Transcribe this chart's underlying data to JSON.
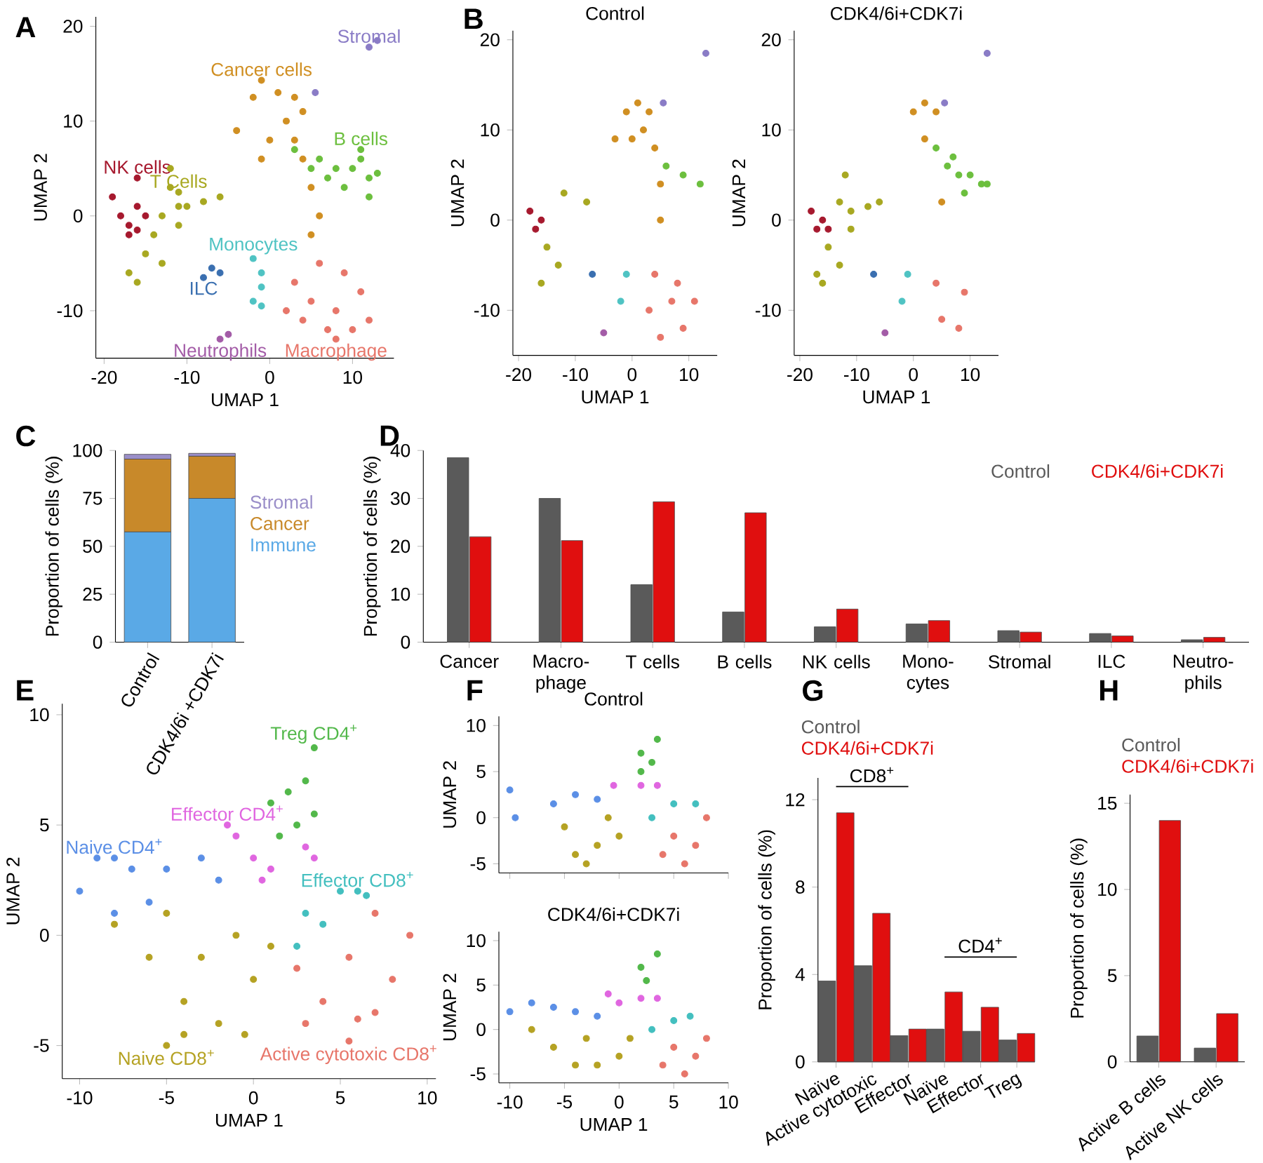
{
  "chart_data": [
    {
      "type": "scatter",
      "xlabel": "UMAP 1",
      "ylabel": "UMAP 2",
      "marker": "circle",
      "annotations": [
        "A"
      ],
      "xlim": [
        -21,
        15
      ],
      "ylim": [
        -15,
        21
      ],
      "xticks": [
        -20,
        -10,
        0,
        10
      ],
      "yticks": [
        -10,
        0,
        10,
        20
      ],
      "series": [
        {
          "name": "Stromal",
          "color": "#8a7cc6",
          "x": [
            12,
            5.5,
            13
          ],
          "values": [
            17.8,
            13,
            18.5
          ]
        },
        {
          "name": "Cancer cells",
          "color": "#d08f22",
          "x": [
            -1,
            -4,
            -2,
            1,
            3,
            4,
            2,
            0,
            -1,
            3,
            4,
            5,
            6,
            5
          ],
          "values": [
            14.3,
            9,
            12.5,
            13,
            12.5,
            11,
            10,
            8,
            6,
            8,
            6,
            3,
            0,
            -2
          ]
        },
        {
          "name": "B cells",
          "color": "#6cbf3e",
          "x": [
            11,
            3,
            6,
            8,
            10,
            12,
            13,
            9,
            11,
            7,
            5,
            12
          ],
          "values": [
            7,
            7,
            6,
            5,
            5,
            4,
            4.5,
            3,
            6,
            4,
            5,
            2
          ]
        },
        {
          "name": "NK cells",
          "color": "#a6192e",
          "x": [
            -16,
            -19,
            -18,
            -17,
            -16,
            -15,
            -17,
            -16
          ],
          "values": [
            4,
            2,
            0,
            -1,
            1,
            0,
            -2,
            -1.5
          ]
        },
        {
          "name": "T Cells",
          "color": "#a8a821",
          "x": [
            -11,
            -12,
            -12,
            -11,
            -13,
            -10,
            -8,
            -6,
            -14,
            -15,
            -17,
            -16,
            -13,
            -11
          ],
          "values": [
            2.5,
            5,
            3,
            1,
            0,
            1,
            1.5,
            2,
            -2,
            -4,
            -6,
            -7,
            -5,
            -1
          ]
        },
        {
          "name": "Monocytes",
          "color": "#4fc3c3",
          "x": [
            -2,
            -1,
            -1,
            -2,
            -1
          ],
          "values": [
            -4.5,
            -6,
            -7.5,
            -9,
            -9.5
          ]
        },
        {
          "name": "ILC",
          "color": "#3a6fb0",
          "x": [
            -8,
            -7,
            -6
          ],
          "values": [
            -6.5,
            -5.5,
            -6
          ]
        },
        {
          "name": "Neutrophils",
          "color": "#a35ca7",
          "x": [
            -6,
            -5
          ],
          "values": [
            -13,
            -12.5
          ]
        },
        {
          "name": "Macrophage",
          "color": "#e7766a",
          "x": [
            8,
            3,
            6,
            9,
            11,
            12,
            2,
            5,
            8,
            7,
            4,
            10
          ],
          "values": [
            -13,
            -7,
            -5,
            -6,
            -8,
            -11,
            -10,
            -9,
            -10,
            -12,
            -11,
            -12
          ]
        }
      ]
    },
    {
      "type": "scatter",
      "title": "Control",
      "xlabel": "UMAP 1",
      "ylabel": "UMAP 2",
      "marker": "circle",
      "annotations": [
        "B"
      ],
      "xlim": [
        -21,
        15
      ],
      "ylim": [
        -15,
        21
      ],
      "xticks": [
        -20,
        -10,
        0,
        10
      ],
      "yticks": [
        -10,
        0,
        10,
        20
      ],
      "series": [
        {
          "color": "#8a7cc6",
          "x": [
            5.5,
            13
          ],
          "values": [
            13,
            18.5
          ]
        },
        {
          "color": "#d08f22",
          "x": [
            -1,
            1,
            3,
            2,
            0,
            4,
            5,
            5,
            -3
          ],
          "values": [
            12,
            13,
            12,
            10,
            9,
            8,
            4,
            0,
            9
          ]
        },
        {
          "color": "#6cbf3e",
          "x": [
            6,
            9,
            12
          ],
          "values": [
            6,
            5,
            4
          ]
        },
        {
          "color": "#a6192e",
          "x": [
            -18,
            -17,
            -16
          ],
          "values": [
            1,
            -1,
            0
          ]
        },
        {
          "color": "#a8a821",
          "x": [
            -12,
            -8,
            -15,
            -16,
            -13
          ],
          "values": [
            3,
            2,
            -3,
            -7,
            -5
          ]
        },
        {
          "color": "#4fc3c3",
          "x": [
            -1,
            -2
          ],
          "values": [
            -6,
            -9
          ]
        },
        {
          "color": "#3a6fb0",
          "x": [
            -7
          ],
          "values": [
            -6
          ]
        },
        {
          "color": "#a35ca7",
          "x": [
            -5
          ],
          "values": [
            -12.5
          ]
        },
        {
          "color": "#e7766a",
          "x": [
            4,
            8,
            11,
            9,
            5,
            3,
            7
          ],
          "values": [
            -6,
            -7,
            -9,
            -12,
            -13,
            -10,
            -9
          ]
        }
      ]
    },
    {
      "type": "scatter",
      "title": "CDK4/6i+CDK7i",
      "xlabel": "UMAP 1",
      "ylabel": "UMAP 2",
      "marker": "circle",
      "xlim": [
        -21,
        15
      ],
      "ylim": [
        -15,
        21
      ],
      "xticks": [
        -20,
        -10,
        0,
        10
      ],
      "yticks": [
        -10,
        0,
        10,
        20
      ],
      "series": [
        {
          "color": "#8a7cc6",
          "x": [
            5.5,
            13
          ],
          "values": [
            13,
            18.5
          ]
        },
        {
          "color": "#d08f22",
          "x": [
            0,
            2,
            4,
            2,
            5
          ],
          "values": [
            12,
            13,
            12,
            9,
            2
          ]
        },
        {
          "color": "#6cbf3e",
          "x": [
            4,
            6,
            8,
            10,
            12,
            13,
            9,
            7
          ],
          "values": [
            8,
            6,
            5,
            5,
            4,
            4,
            3,
            7
          ]
        },
        {
          "color": "#a6192e",
          "x": [
            -18,
            -17,
            -16,
            -15
          ],
          "values": [
            1,
            -1,
            0,
            -1
          ]
        },
        {
          "color": "#a8a821",
          "x": [
            -13,
            -12,
            -11,
            -8,
            -6,
            -15,
            -17,
            -16,
            -13,
            -11
          ],
          "values": [
            2,
            5,
            1,
            1.5,
            2,
            -3,
            -6,
            -7,
            -5,
            -1
          ]
        },
        {
          "color": "#4fc3c3",
          "x": [
            -1,
            -2
          ],
          "values": [
            -6,
            -9
          ]
        },
        {
          "color": "#3a6fb0",
          "x": [
            -7
          ],
          "values": [
            -6
          ]
        },
        {
          "color": "#a35ca7",
          "x": [
            -5
          ],
          "values": [
            -12.5
          ]
        },
        {
          "color": "#e7766a",
          "x": [
            4,
            9,
            8,
            5
          ],
          "values": [
            -7,
            -8,
            -12,
            -11
          ]
        }
      ]
    },
    {
      "type": "bar",
      "stacked": true,
      "ylabel": "Proportion of cells (%)",
      "legend": "right",
      "annotations": [
        "C"
      ],
      "categories": [
        "Control",
        "CDK4/6i +CDK7i"
      ],
      "ylim": [
        0,
        100
      ],
      "yticks": [
        0,
        25,
        50,
        75,
        100
      ],
      "series": [
        {
          "name": "Immune",
          "color": "#5aa9e6",
          "values": [
            57.5,
            75
          ]
        },
        {
          "name": "Cancer",
          "color": "#c8892a",
          "values": [
            38,
            22
          ]
        },
        {
          "name": "Stromal",
          "color": "#9b8fc9",
          "values": [
            2.5,
            1.5
          ]
        }
      ]
    },
    {
      "type": "bar",
      "ylabel": "Proportion of cells (%)",
      "legend": "top right",
      "annotations": [
        "D"
      ],
      "categories": [
        "Cancer",
        "Macro-phage",
        "T cells",
        "B cells",
        "NK cells",
        "Mono-cytes",
        "Stromal",
        "ILC",
        "Neutro-phils"
      ],
      "ylim": [
        0,
        40
      ],
      "yticks": [
        0,
        10,
        20,
        30,
        40
      ],
      "series": [
        {
          "name": "Control",
          "color": "#5a5a5a",
          "values": [
            38.5,
            30,
            12,
            6.3,
            3.2,
            3.8,
            2.4,
            1.8,
            0.5
          ]
        },
        {
          "name": "CDK4/6i+CDK7i",
          "color": "#e00f0f",
          "values": [
            22,
            21.2,
            29.3,
            27,
            6.9,
            4.5,
            2.1,
            1.3,
            1.0
          ]
        }
      ]
    },
    {
      "type": "scatter",
      "xlabel": "UMAP 1",
      "ylabel": "UMAP 2",
      "marker": "circle",
      "annotations": [
        "E"
      ],
      "xlim": [
        -11,
        10.5
      ],
      "ylim": [
        -6.5,
        10.5
      ],
      "xticks": [
        -10,
        -5,
        0,
        5,
        10
      ],
      "yticks": [
        -5,
        0,
        5,
        10
      ],
      "series": [
        {
          "name": "Treg CD4$^{+}$",
          "color": "#52b84a",
          "x": [
            3.5,
            1,
            2,
            3,
            3.5,
            2.5,
            1.5
          ],
          "values": [
            8.5,
            6,
            6.5,
            7,
            5.5,
            5,
            4.5
          ]
        },
        {
          "name": "Effector CD4$^{+}$",
          "color": "#e066e0",
          "x": [
            -1.5,
            -1,
            0,
            1,
            3,
            3.5,
            0.5
          ],
          "values": [
            5,
            4.5,
            3.5,
            3,
            4,
            3.5,
            2.5
          ]
        },
        {
          "name": "Naive CD4$^{+}$",
          "color": "#5b8fe6",
          "x": [
            -8,
            -10,
            -9,
            -7,
            -5,
            -3,
            -2,
            -6,
            -8
          ],
          "values": [
            3.5,
            2,
            3.5,
            3,
            3,
            3.5,
            2.5,
            1.5,
            1
          ]
        },
        {
          "name": "Effector CD8$^{+}$",
          "color": "#43bfbf",
          "x": [
            6,
            3,
            4,
            5,
            6.5,
            2.5
          ],
          "values": [
            2,
            1,
            0.5,
            2,
            1.8,
            -0.5
          ]
        },
        {
          "name": "Naive CD8$^{+}$",
          "color": "#b5a223",
          "x": [
            -5,
            -8,
            -6,
            -4,
            -2,
            -0.5,
            0,
            -3,
            -5,
            1,
            -1,
            -4
          ],
          "values": [
            -5,
            0.5,
            -1,
            -3,
            -4,
            -4.5,
            -2,
            -1,
            1,
            -0.5,
            0,
            -4.5
          ]
        },
        {
          "name": "Active cytotoxic CD8$^{+}$",
          "color": "#e7766a",
          "x": [
            5.5,
            4,
            6,
            8,
            9,
            7,
            5.5,
            3,
            2.5,
            7
          ],
          "values": [
            -4.8,
            -3,
            -3.8,
            -2,
            0,
            1,
            -1,
            -4,
            -1.5,
            -3.5
          ]
        }
      ]
    },
    {
      "type": "scatter",
      "title": "Control",
      "ylabel": "UMAP 2",
      "marker": "circle",
      "tick_labels": "y",
      "annotations": [
        "F"
      ],
      "xlim": [
        -11,
        10
      ],
      "ylim": [
        -6,
        11
      ],
      "xticks": [
        -10,
        -5,
        0,
        5,
        10
      ],
      "yticks": [
        -5,
        0,
        5,
        10
      ],
      "series": [
        {
          "color": "#52b84a",
          "x": [
            2,
            3.5,
            3,
            2
          ],
          "values": [
            7,
            8.5,
            6,
            5
          ]
        },
        {
          "color": "#e066e0",
          "x": [
            -0.5,
            2,
            3.5
          ],
          "values": [
            3.5,
            3.5,
            3.5
          ]
        },
        {
          "color": "#5b8fe6",
          "x": [
            -10,
            -9.5,
            -6,
            -4,
            -2
          ],
          "values": [
            3,
            0,
            1.5,
            2.5,
            2
          ]
        },
        {
          "color": "#43bfbf",
          "x": [
            3,
            5,
            7
          ],
          "values": [
            0,
            1.5,
            1.5
          ]
        },
        {
          "color": "#b5a223",
          "x": [
            -5,
            -2,
            0,
            -4,
            -1,
            -3
          ],
          "values": [
            -1,
            -3,
            -2,
            -4,
            0,
            -5
          ]
        },
        {
          "color": "#e7766a",
          "x": [
            5,
            7,
            8,
            6,
            4
          ],
          "values": [
            -2,
            -3,
            0,
            -5,
            -4
          ]
        }
      ]
    },
    {
      "type": "scatter",
      "title": "CDK4/6i+CDK7i",
      "xlabel": "UMAP 1",
      "ylabel": "UMAP 2",
      "marker": "circle",
      "xlim": [
        -11,
        10
      ],
      "ylim": [
        -6,
        11
      ],
      "xticks": [
        -10,
        -5,
        0,
        5,
        10
      ],
      "yticks": [
        -5,
        0,
        5,
        10
      ],
      "series": [
        {
          "color": "#52b84a",
          "x": [
            2,
            3.5,
            2.5
          ],
          "values": [
            7,
            8.5,
            5.5
          ]
        },
        {
          "color": "#e066e0",
          "x": [
            -1,
            0,
            2,
            3.5
          ],
          "values": [
            4,
            3,
            3.5,
            3.5
          ]
        },
        {
          "color": "#5b8fe6",
          "x": [
            -10,
            -8,
            -6,
            -4,
            -2
          ],
          "values": [
            2,
            3,
            2.5,
            2,
            1.5
          ]
        },
        {
          "color": "#43bfbf",
          "x": [
            3,
            5,
            6.5
          ],
          "values": [
            0,
            1,
            1.5
          ]
        },
        {
          "color": "#b5a223",
          "x": [
            -8,
            -6,
            -4,
            -2,
            0,
            1,
            -3
          ],
          "values": [
            0,
            -2,
            -4,
            -4,
            -3,
            -1,
            -1
          ]
        },
        {
          "color": "#e7766a",
          "x": [
            5,
            7,
            8,
            6,
            4
          ],
          "values": [
            -2,
            -3,
            -1,
            -5,
            -4
          ]
        }
      ]
    },
    {
      "type": "bar",
      "ylabel": "Proportion of cells (%)",
      "legend": "top left",
      "annotations": [
        "G",
        "CD8$^{+}$",
        "CD4$^{+}$"
      ],
      "categories": [
        "Naïve",
        "Active cytotoxic",
        "Effector",
        "Naïve",
        "Effector",
        "Treg"
      ],
      "ylim": [
        0,
        13
      ],
      "yticks": [
        0,
        4,
        8,
        12
      ],
      "series": [
        {
          "name": "Control",
          "color": "#5a5a5a",
          "values": [
            3.7,
            4.4,
            1.2,
            1.5,
            1.4,
            1.0
          ]
        },
        {
          "name": "CDK4/6i+CDK7i",
          "color": "#e00f0f",
          "values": [
            11.4,
            6.8,
            1.5,
            3.2,
            2.5,
            1.3
          ]
        },
        {
          "type": "line",
          "color": "#000000",
          "values": [
            12.6,
            12.6,
            12.6,
            null,
            null,
            null
          ]
        },
        {
          "type": "line",
          "color": "#000000",
          "values": [
            null,
            null,
            null,
            4.8,
            4.8,
            4.8
          ]
        }
      ]
    },
    {
      "type": "bar",
      "ylabel": "Proportion of cells (%)",
      "legend": "top left",
      "annotations": [
        "H"
      ],
      "categories": [
        "Active B cells",
        "Active NK cells"
      ],
      "ylim": [
        0,
        15.5
      ],
      "yticks": [
        0,
        5,
        10,
        15
      ],
      "series": [
        {
          "name": "Control",
          "color": "#5a5a5a",
          "values": [
            1.5,
            0.8
          ]
        },
        {
          "name": "CDK4/6i+CDK7i",
          "color": "#e00f0f",
          "values": [
            14,
            2.8
          ]
        }
      ]
    }
  ]
}
